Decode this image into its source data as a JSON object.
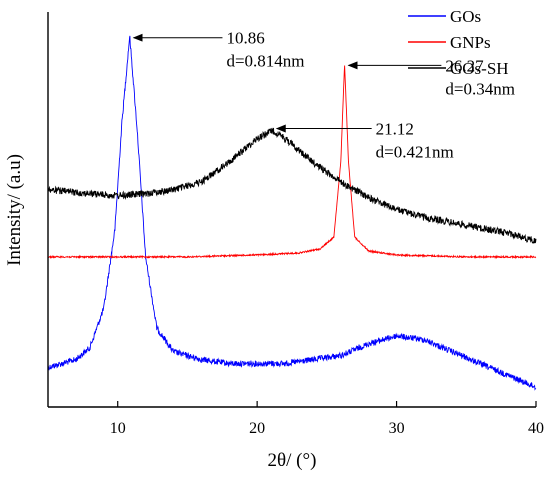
{
  "chart_data": {
    "type": "line",
    "xlabel": "2θ/ (°)",
    "ylabel": "Intensity/ (a.u)",
    "xlim": [
      5,
      40
    ],
    "xticks": [
      10,
      20,
      30,
      40
    ],
    "y_tick_labels": false,
    "grid": false,
    "legend": {
      "placement": "top-right",
      "entries": [
        "GOs",
        "GNPs",
        "GOs-SH"
      ]
    },
    "series": [
      {
        "name": "GOs",
        "color": "#0000ff",
        "noise": 6,
        "points": [
          [
            5,
            0.1
          ],
          [
            6,
            0.11
          ],
          [
            7,
            0.12
          ],
          [
            8,
            0.15
          ],
          [
            9,
            0.25
          ],
          [
            9.8,
            0.45
          ],
          [
            10.3,
            0.72
          ],
          [
            10.86,
            0.94
          ],
          [
            11.4,
            0.7
          ],
          [
            12,
            0.38
          ],
          [
            12.8,
            0.2
          ],
          [
            14,
            0.14
          ],
          [
            16,
            0.12
          ],
          [
            18,
            0.11
          ],
          [
            20,
            0.11
          ],
          [
            22,
            0.11
          ],
          [
            24,
            0.12
          ],
          [
            26,
            0.13
          ],
          [
            28,
            0.16
          ],
          [
            30,
            0.18
          ],
          [
            32,
            0.17
          ],
          [
            34,
            0.14
          ],
          [
            36,
            0.11
          ],
          [
            38,
            0.08
          ],
          [
            40,
            0.05
          ]
        ]
      },
      {
        "name": "GNPs",
        "color": "#ff0000",
        "noise": 1.5,
        "points": [
          [
            5,
            0.38
          ],
          [
            10,
            0.38
          ],
          [
            15,
            0.38
          ],
          [
            20,
            0.385
          ],
          [
            23,
            0.39
          ],
          [
            24.5,
            0.4
          ],
          [
            25.5,
            0.43
          ],
          [
            26.0,
            0.62
          ],
          [
            26.27,
            0.87
          ],
          [
            26.55,
            0.62
          ],
          [
            27.0,
            0.43
          ],
          [
            28,
            0.395
          ],
          [
            30,
            0.385
          ],
          [
            35,
            0.38
          ],
          [
            40,
            0.38
          ]
        ]
      },
      {
        "name": "GOs-SH",
        "color": "#000000",
        "noise": 7,
        "points": [
          [
            5,
            0.55
          ],
          [
            8,
            0.54
          ],
          [
            10,
            0.535
          ],
          [
            12,
            0.54
          ],
          [
            14,
            0.55
          ],
          [
            16,
            0.57
          ],
          [
            18,
            0.62
          ],
          [
            20,
            0.68
          ],
          [
            21.12,
            0.7
          ],
          [
            22,
            0.68
          ],
          [
            24,
            0.62
          ],
          [
            26,
            0.57
          ],
          [
            28,
            0.53
          ],
          [
            30,
            0.5
          ],
          [
            32,
            0.48
          ],
          [
            35,
            0.46
          ],
          [
            38,
            0.44
          ],
          [
            40,
            0.42
          ]
        ]
      }
    ],
    "annotations": [
      {
        "x": 10.86,
        "y": 0.94,
        "line1": "10.86",
        "line2": "d=0.814nm",
        "label_x": 17.8
      },
      {
        "x": 26.27,
        "y": 0.87,
        "line1": "26.27",
        "line2": "d=0.34nm",
        "label_x": 33.5
      },
      {
        "x": 21.12,
        "y": 0.71,
        "line1": "21.12",
        "line2": "d=0.421nm",
        "label_x": 28.5
      }
    ]
  }
}
